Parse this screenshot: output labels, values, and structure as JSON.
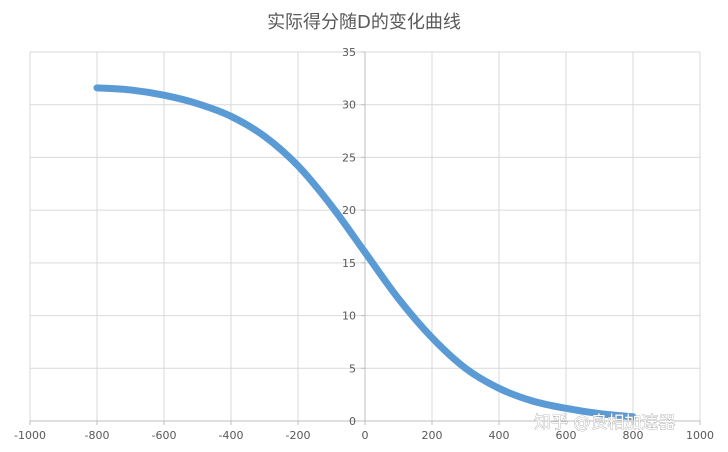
{
  "chart_data": {
    "type": "line",
    "title": "实际得分随D的变化曲线",
    "xlabel": "",
    "ylabel": "",
    "xlim": [
      -1000,
      1000
    ],
    "ylim": [
      0,
      35
    ],
    "x_ticks": [
      -1000,
      -800,
      -600,
      -400,
      -200,
      0,
      200,
      400,
      600,
      800,
      1000
    ],
    "y_ticks": [
      0,
      5,
      10,
      15,
      20,
      25,
      30,
      35
    ],
    "grid": true,
    "legend": "none",
    "series": [
      {
        "color": "#5b9bd5",
        "x": [
          -800,
          -700,
          -600,
          -500,
          -400,
          -300,
          -200,
          -100,
          0,
          100,
          200,
          300,
          400,
          500,
          600,
          700,
          800
        ],
        "y": [
          31.6,
          31.4,
          30.9,
          30.1,
          28.9,
          27.0,
          24.2,
          20.4,
          16.0,
          11.6,
          7.9,
          5.0,
          3.1,
          1.9,
          1.2,
          0.7,
          0.4
        ]
      }
    ]
  },
  "watermark": {
    "text": "知乎 @良相加速器"
  }
}
